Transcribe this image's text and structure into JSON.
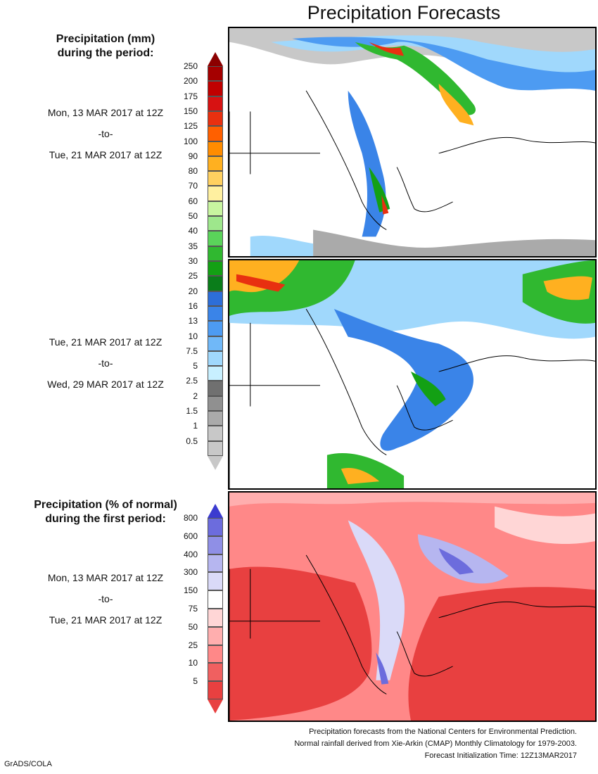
{
  "title": "Precipitation Forecasts",
  "mm_legend": {
    "title_line1": "Precipitation (mm)",
    "title_line2": "during the period:",
    "ticks": [
      "250",
      "200",
      "175",
      "150",
      "125",
      "100",
      "90",
      "80",
      "70",
      "60",
      "50",
      "40",
      "35",
      "30",
      "25",
      "20",
      "16",
      "13",
      "10",
      "7.5",
      "5",
      "2.5",
      "2",
      "1.5",
      "1",
      "0.5"
    ],
    "colors": [
      "#8b0000",
      "#a50000",
      "#c00000",
      "#d71212",
      "#e83010",
      "#ff6000",
      "#ff8c00",
      "#ffb020",
      "#ffd060",
      "#fff0a0",
      "#c8f5a0",
      "#9ee78c",
      "#5ad35a",
      "#30b830",
      "#13a014",
      "#0a7d1a",
      "#2d6ed8",
      "#3a84e8",
      "#4d9bf2",
      "#70b8f8",
      "#a0d8fc",
      "#c8f0ff",
      "#707070",
      "#909090",
      "#aaaaaa",
      "#c8c8c8"
    ]
  },
  "pct_legend": {
    "title_line1": "Precipitation (% of normal)",
    "title_line2": "during the first period:",
    "ticks": [
      "800",
      "600",
      "400",
      "300",
      "150",
      "75",
      "50",
      "25",
      "10",
      "5"
    ],
    "colors": [
      "#3b3bd0",
      "#6c6cdd",
      "#8f8fe6",
      "#b6b6f0",
      "#dadaf8",
      "#ffffff",
      "#ffd6d6",
      "#ffaeae",
      "#ff8888",
      "#f06060",
      "#e84040"
    ]
  },
  "period1": {
    "start": "Mon, 13 MAR 2017 at 12Z",
    "to": "-to-",
    "end": "Tue, 21 MAR 2017 at 12Z"
  },
  "period2": {
    "start": "Tue, 21 MAR 2017 at 12Z",
    "to": "-to-",
    "end": "Wed, 29 MAR 2017 at 12Z"
  },
  "period3": {
    "start": "Mon, 13 MAR 2017 at 12Z",
    "to": "-to-",
    "end": "Tue, 21 MAR 2017 at 12Z"
  },
  "footer": {
    "line1": "Precipitation forecasts from the National Centers for Environmental Prediction.",
    "line2": "Normal rainfall derived from Xie-Arkin (CMAP) Monthly Climatology for 1979-2003.",
    "line3": "Forecast Initialization Time: 12Z13MAR2017"
  },
  "credit": "GrADS/COLA"
}
